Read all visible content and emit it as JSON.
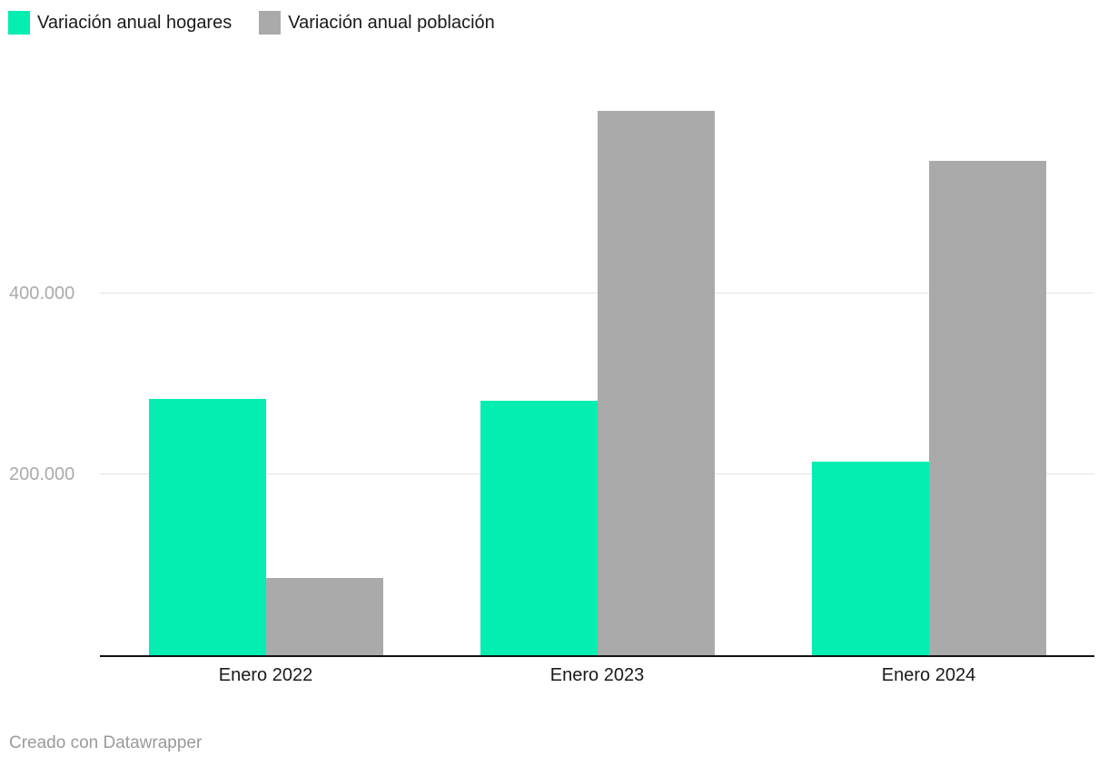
{
  "footer": {
    "attribution": "Creado con Datawrapper"
  },
  "colors": {
    "hogares": "#04eeb2",
    "poblacion": "#aaaaaa",
    "axis": "#111111",
    "gridline": "#e4e4e4",
    "tick_label": "#ababab"
  },
  "chart_data": {
    "type": "bar",
    "title": "",
    "xlabel": "",
    "ylabel": "",
    "categories": [
      "Enero 2022",
      "Enero 2023",
      "Enero 2024"
    ],
    "series": [
      {
        "name": "Variación anual hogares",
        "color": "#04eeb2",
        "values": [
          283000,
          281000,
          214000
        ]
      },
      {
        "name": "Variación anual población",
        "color": "#aaaaaa",
        "values": [
          85000,
          602000,
          547000
        ]
      }
    ],
    "yticks": [
      {
        "value": 200000,
        "label": "200.000"
      },
      {
        "value": 400000,
        "label": "400.000"
      }
    ],
    "ylim": [
      0,
      629000
    ],
    "grid": true,
    "legend_position": "top-left"
  }
}
